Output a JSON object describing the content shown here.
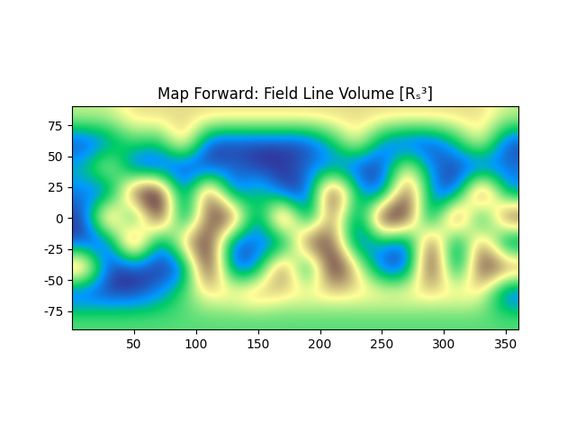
{
  "chart_data": {
    "type": "heatmap",
    "title": "Map Forward: Field Line Volume [Rₛ³]",
    "x": [
      10,
      30,
      50,
      70,
      90,
      110,
      130,
      150,
      170,
      190,
      210,
      230,
      250,
      270,
      290,
      310,
      330,
      350
    ],
    "y": [
      80,
      60,
      40,
      20,
      0,
      -20,
      -40,
      -60,
      -80
    ],
    "values": [
      [
        4,
        4,
        5,
        5,
        5,
        5,
        5,
        5,
        5,
        5,
        5,
        5,
        5,
        5,
        5,
        5,
        5,
        4
      ],
      [
        0,
        1,
        3,
        2,
        6,
        0,
        0,
        0,
        0,
        0,
        2,
        5,
        1,
        0,
        0,
        2,
        5,
        0
      ],
      [
        2,
        5,
        0,
        0,
        0,
        0,
        1,
        0,
        0,
        1,
        1,
        0,
        0,
        5,
        1,
        0,
        0,
        1
      ],
      [
        1,
        0,
        8,
        9,
        0,
        8,
        0,
        3,
        0,
        0,
        9,
        2,
        0,
        8,
        1,
        0,
        9,
        1
      ],
      [
        0,
        8,
        0,
        9,
        0,
        7,
        8,
        0,
        9,
        0,
        7,
        0,
        9,
        8,
        0,
        9,
        0,
        8
      ],
      [
        0,
        0,
        9,
        0,
        6,
        8,
        0,
        1,
        0,
        8,
        7,
        0,
        2,
        0,
        8,
        0,
        7,
        0
      ],
      [
        7,
        0,
        0,
        0,
        0,
        9,
        0,
        1,
        8,
        0,
        9,
        5,
        0,
        0,
        9,
        0,
        8,
        7
      ],
      [
        0,
        0,
        0,
        1,
        3,
        5,
        5,
        6,
        5,
        5,
        5,
        5,
        5,
        5,
        5,
        5,
        5,
        0
      ],
      [
        3,
        3,
        3,
        3,
        3,
        3,
        3,
        3,
        3,
        3,
        3,
        3,
        3,
        3,
        3,
        3,
        3,
        3
      ]
    ],
    "xlim": [
      0,
      360
    ],
    "ylim": [
      -90,
      90
    ],
    "xticks": [
      50,
      100,
      150,
      200,
      250,
      300,
      350
    ],
    "yticks": [
      -75,
      -50,
      -25,
      0,
      25,
      50,
      75
    ]
  }
}
